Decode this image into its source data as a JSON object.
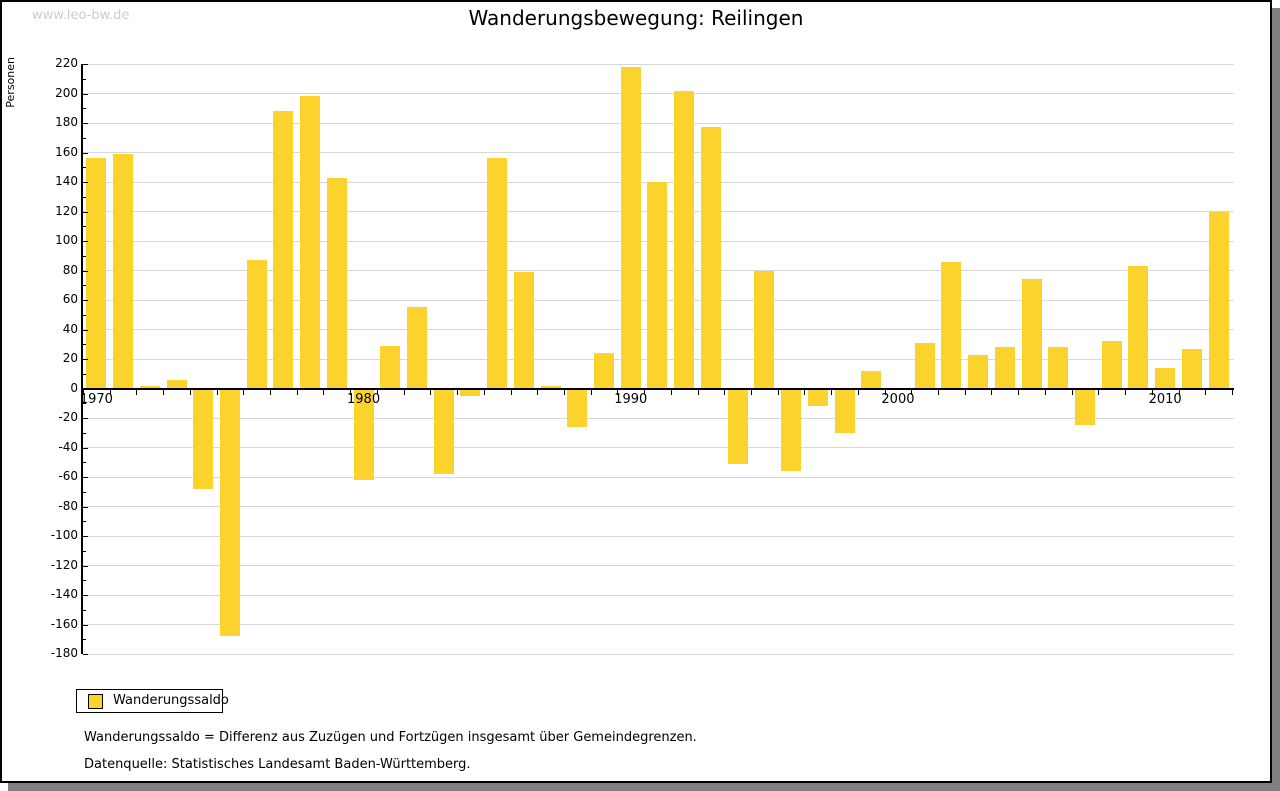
{
  "watermark": "www.leo-bw.de",
  "title": "Wanderungsbewegung: Reilingen",
  "legend": {
    "label": "Wanderungssaldo"
  },
  "caption_line1": "Wanderungssaldo = Differenz aus Zuzügen und Fortzügen insgesamt über Gemeindegrenzen.",
  "caption_line2": "Datenquelle: Statistisches Landesamt Baden-Württemberg.",
  "colors": {
    "bar": "#FCD22C",
    "grid": "#D8D8D8",
    "axis": "#000000",
    "watermark": "#CCCCCC",
    "shadow": "#808080",
    "text": "#000000"
  },
  "chart_data": {
    "type": "bar",
    "title": "Wanderungsbewegung: Reilingen",
    "xlabel": "",
    "ylabel": "Personen",
    "series_name": "Wanderungssaldo",
    "x": [
      1970,
      1971,
      1972,
      1973,
      1974,
      1975,
      1976,
      1977,
      1978,
      1979,
      1980,
      1981,
      1982,
      1983,
      1984,
      1985,
      1986,
      1987,
      1988,
      1989,
      1990,
      1991,
      1992,
      1993,
      1994,
      1995,
      1996,
      1997,
      1998,
      1999,
      2000,
      2001,
      2002,
      2003,
      2004,
      2005,
      2006,
      2007,
      2008,
      2009,
      2010,
      2011,
      2012
    ],
    "values": [
      156,
      159,
      2,
      6,
      -68,
      -168,
      87,
      188,
      198,
      143,
      -62,
      29,
      55,
      -58,
      -5,
      156,
      79,
      2,
      -26,
      24,
      218,
      140,
      202,
      177,
      -51,
      80,
      -56,
      -12,
      -30,
      12,
      0,
      31,
      86,
      23,
      28,
      74,
      28,
      -25,
      32,
      83,
      14,
      27,
      120
    ],
    "ylim": [
      -180,
      220
    ],
    "ytick_step": 20,
    "xtick_labels": [
      "1970",
      "1980",
      "1990",
      "2000",
      "2010"
    ],
    "grid": true,
    "legend_position": "bottom-left"
  }
}
